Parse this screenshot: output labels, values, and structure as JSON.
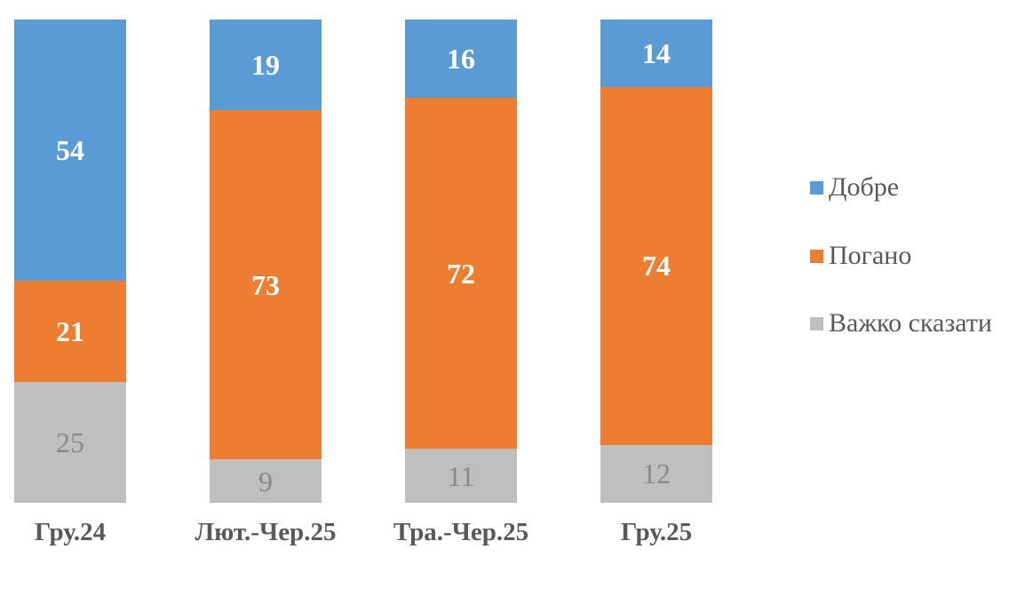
{
  "chart_data": {
    "type": "bar",
    "variant": "stacked-100-column",
    "title": "",
    "categories": [
      "Гру.24",
      "Лют.-Чер.25",
      "Тра.-Чер.25",
      "Гру.25"
    ],
    "series": [
      {
        "name": "Добре",
        "color": "#5B9BD5",
        "label_color": "#FFFFFF",
        "label_weight": "bold",
        "values": [
          54,
          19,
          16,
          14
        ]
      },
      {
        "name": "Погано",
        "color": "#ED7D31",
        "label_color": "#FFFFFF",
        "label_weight": "bold",
        "values": [
          21,
          73,
          72,
          74
        ]
      },
      {
        "name": "Важко сказати",
        "color": "#BFBFBF",
        "label_color": "#898989",
        "label_weight": "normal",
        "values": [
          25,
          9,
          11,
          12
        ]
      }
    ],
    "data_labels": true,
    "grid": false,
    "legend": {
      "position": "right",
      "items": [
        "Добре",
        "Погано",
        "Важко сказати"
      ]
    },
    "axis": {
      "x_label_color": "#595959",
      "y_axis_visible": false
    },
    "background": "#FFFFFF"
  }
}
